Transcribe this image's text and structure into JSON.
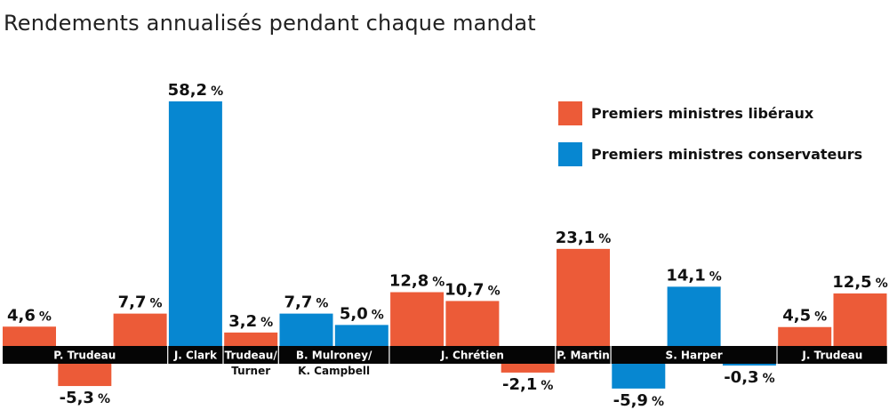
{
  "chart_data": {
    "type": "bar",
    "title": "Rendements annualisés pendant chaque mandat",
    "ylim": [
      -5.9,
      58.2
    ],
    "colors": {
      "liberal": "#ec5b38",
      "conservative": "#0787d1",
      "band": "#050505"
    },
    "legend": {
      "placement": "top-right",
      "entries": [
        {
          "label": "Premiers ministres libéraux",
          "color": "#ec5b38"
        },
        {
          "label": "Premiers ministres conservateurs",
          "color": "#0787d1"
        }
      ]
    },
    "groups": [
      {
        "names": [
          "P. Trudeau"
        ]
      },
      {
        "names": [
          "J. Clark"
        ]
      },
      {
        "names": [
          "Trudeau/",
          "Turner"
        ]
      },
      {
        "names": [
          "B. Mulroney/",
          "K. Campbell"
        ]
      },
      {
        "names": [
          "J. Chrétien"
        ]
      },
      {
        "names": [
          "P. Martin"
        ]
      },
      {
        "names": [
          "S. Harper"
        ]
      },
      {
        "names": [
          "J. Trudeau"
        ]
      }
    ],
    "bars": [
      {
        "group": 0,
        "party": "liberal",
        "value": 4.6,
        "label": "4,6",
        "unit": "%"
      },
      {
        "group": 0,
        "party": "liberal",
        "value": -5.3,
        "label": "-5,3",
        "unit": "%"
      },
      {
        "group": 0,
        "party": "liberal",
        "value": 7.7,
        "label": "7,7",
        "unit": "%"
      },
      {
        "group": 1,
        "party": "conservative",
        "value": 58.2,
        "label": "58,2",
        "unit": "%"
      },
      {
        "group": 2,
        "party": "liberal",
        "value": 3.2,
        "label": "3,2",
        "unit": "%"
      },
      {
        "group": 3,
        "party": "conservative",
        "value": 7.7,
        "label": "7,7",
        "unit": "%"
      },
      {
        "group": 3,
        "party": "conservative",
        "value": 5.0,
        "label": "5,0",
        "unit": "%"
      },
      {
        "group": 4,
        "party": "liberal",
        "value": 12.8,
        "label": "12,8",
        "unit": "%"
      },
      {
        "group": 4,
        "party": "liberal",
        "value": 10.7,
        "label": "10,7",
        "unit": "%"
      },
      {
        "group": 4,
        "party": "liberal",
        "value": -2.1,
        "label": "-2,1",
        "unit": "%"
      },
      {
        "group": 5,
        "party": "liberal",
        "value": 23.1,
        "label": "23,1",
        "unit": "%"
      },
      {
        "group": 6,
        "party": "conservative",
        "value": -5.9,
        "label": "-5,9",
        "unit": "%"
      },
      {
        "group": 6,
        "party": "conservative",
        "value": 14.1,
        "label": "14,1",
        "unit": "%"
      },
      {
        "group": 6,
        "party": "conservative",
        "value": -0.3,
        "label": "-0,3",
        "unit": "%"
      },
      {
        "group": 7,
        "party": "liberal",
        "value": 4.5,
        "label": "4,5",
        "unit": "%"
      },
      {
        "group": 7,
        "party": "liberal",
        "value": 12.5,
        "label": "12,5",
        "unit": "%"
      }
    ]
  }
}
